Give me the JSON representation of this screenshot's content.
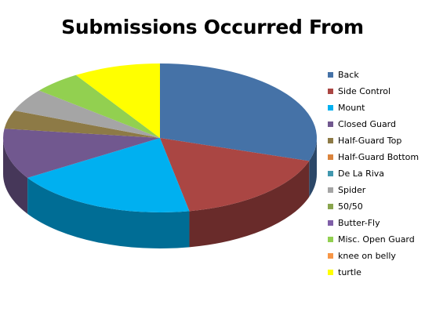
{
  "chart_data": {
    "type": "pie",
    "title": "Submissions Occurred From",
    "style": "3d",
    "legend_position": "right",
    "slices": [
      {
        "label": "Back",
        "value": 30,
        "color": "#4572a7"
      },
      {
        "label": "Side Control",
        "value": 17,
        "color": "#aa4643"
      },
      {
        "label": "Mount",
        "value": 19,
        "color": "#00b0f0"
      },
      {
        "label": "Closed Guard",
        "value": 11,
        "color": "#71588f"
      },
      {
        "label": "Half-Guard Top",
        "value": 4,
        "color": "#8d7a46"
      },
      {
        "label": "Half-Guard Bottom",
        "value": 0,
        "color": "#db843d"
      },
      {
        "label": "De La Riva",
        "value": 0,
        "color": "#4198af"
      },
      {
        "label": "Spider",
        "value": 5,
        "color": "#a5a5a5"
      },
      {
        "label": "50/50",
        "value": 0,
        "color": "#89a54e"
      },
      {
        "label": "Butter-Fly",
        "value": 0,
        "color": "#7f5fa8"
      },
      {
        "label": "Misc. Open Guard",
        "value": 5,
        "color": "#92d050"
      },
      {
        "label": "knee on belly",
        "value": 0,
        "color": "#f79646"
      },
      {
        "label": "turtle",
        "value": 9,
        "color": "#ffff00"
      }
    ]
  }
}
